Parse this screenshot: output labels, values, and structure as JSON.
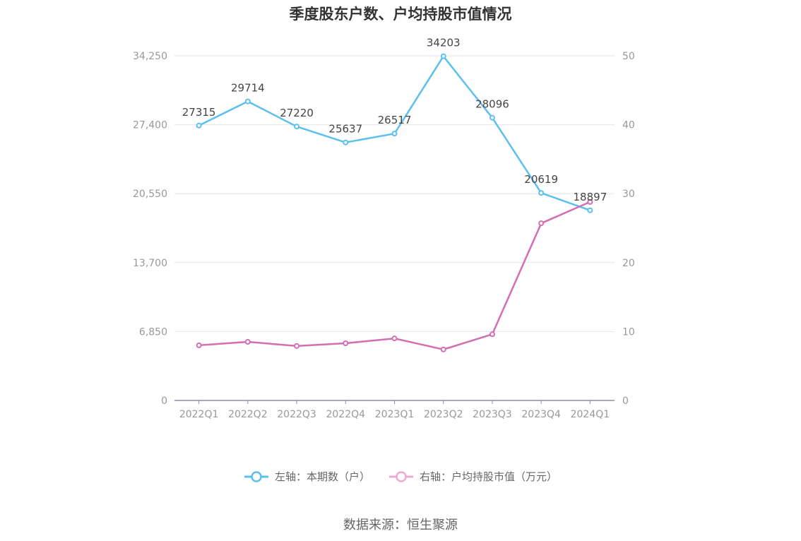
{
  "chart_data": {
    "type": "line",
    "title": "季度股东户数、户均持股市值情况",
    "categories": [
      "2022Q1",
      "2022Q2",
      "2022Q3",
      "2022Q4",
      "2023Q1",
      "2023Q2",
      "2023Q3",
      "2023Q4",
      "2024Q1"
    ],
    "left_axis": {
      "ticks": [
        "0",
        "6,850",
        "13,700",
        "20,550",
        "27,400",
        "34,250"
      ],
      "ylim": [
        0,
        34250
      ]
    },
    "right_axis": {
      "ticks": [
        "0",
        "10",
        "20",
        "30",
        "40",
        "50"
      ],
      "ylim": [
        0,
        50
      ]
    },
    "series": [
      {
        "name": "左轴：本期数（户）",
        "axis": "left",
        "color": "#5bc0f0",
        "values": [
          27315,
          29714,
          27220,
          25637,
          26517,
          34203,
          28096,
          20619,
          18897
        ],
        "labels": [
          "27315",
          "29714",
          "27220",
          "25637",
          "26517",
          "34203",
          "28096",
          "20619",
          "18897"
        ]
      },
      {
        "name": "右轴：户均持股市值（万元）",
        "axis": "right",
        "color": "#d46db1",
        "legend_color": "#f0a8d0",
        "values": [
          8.0,
          8.5,
          7.9,
          8.3,
          9.0,
          7.4,
          9.6,
          25.7,
          28.8
        ]
      }
    ],
    "grid": true,
    "legend_position": "bottom"
  },
  "source": "数据来源：恒生聚源"
}
